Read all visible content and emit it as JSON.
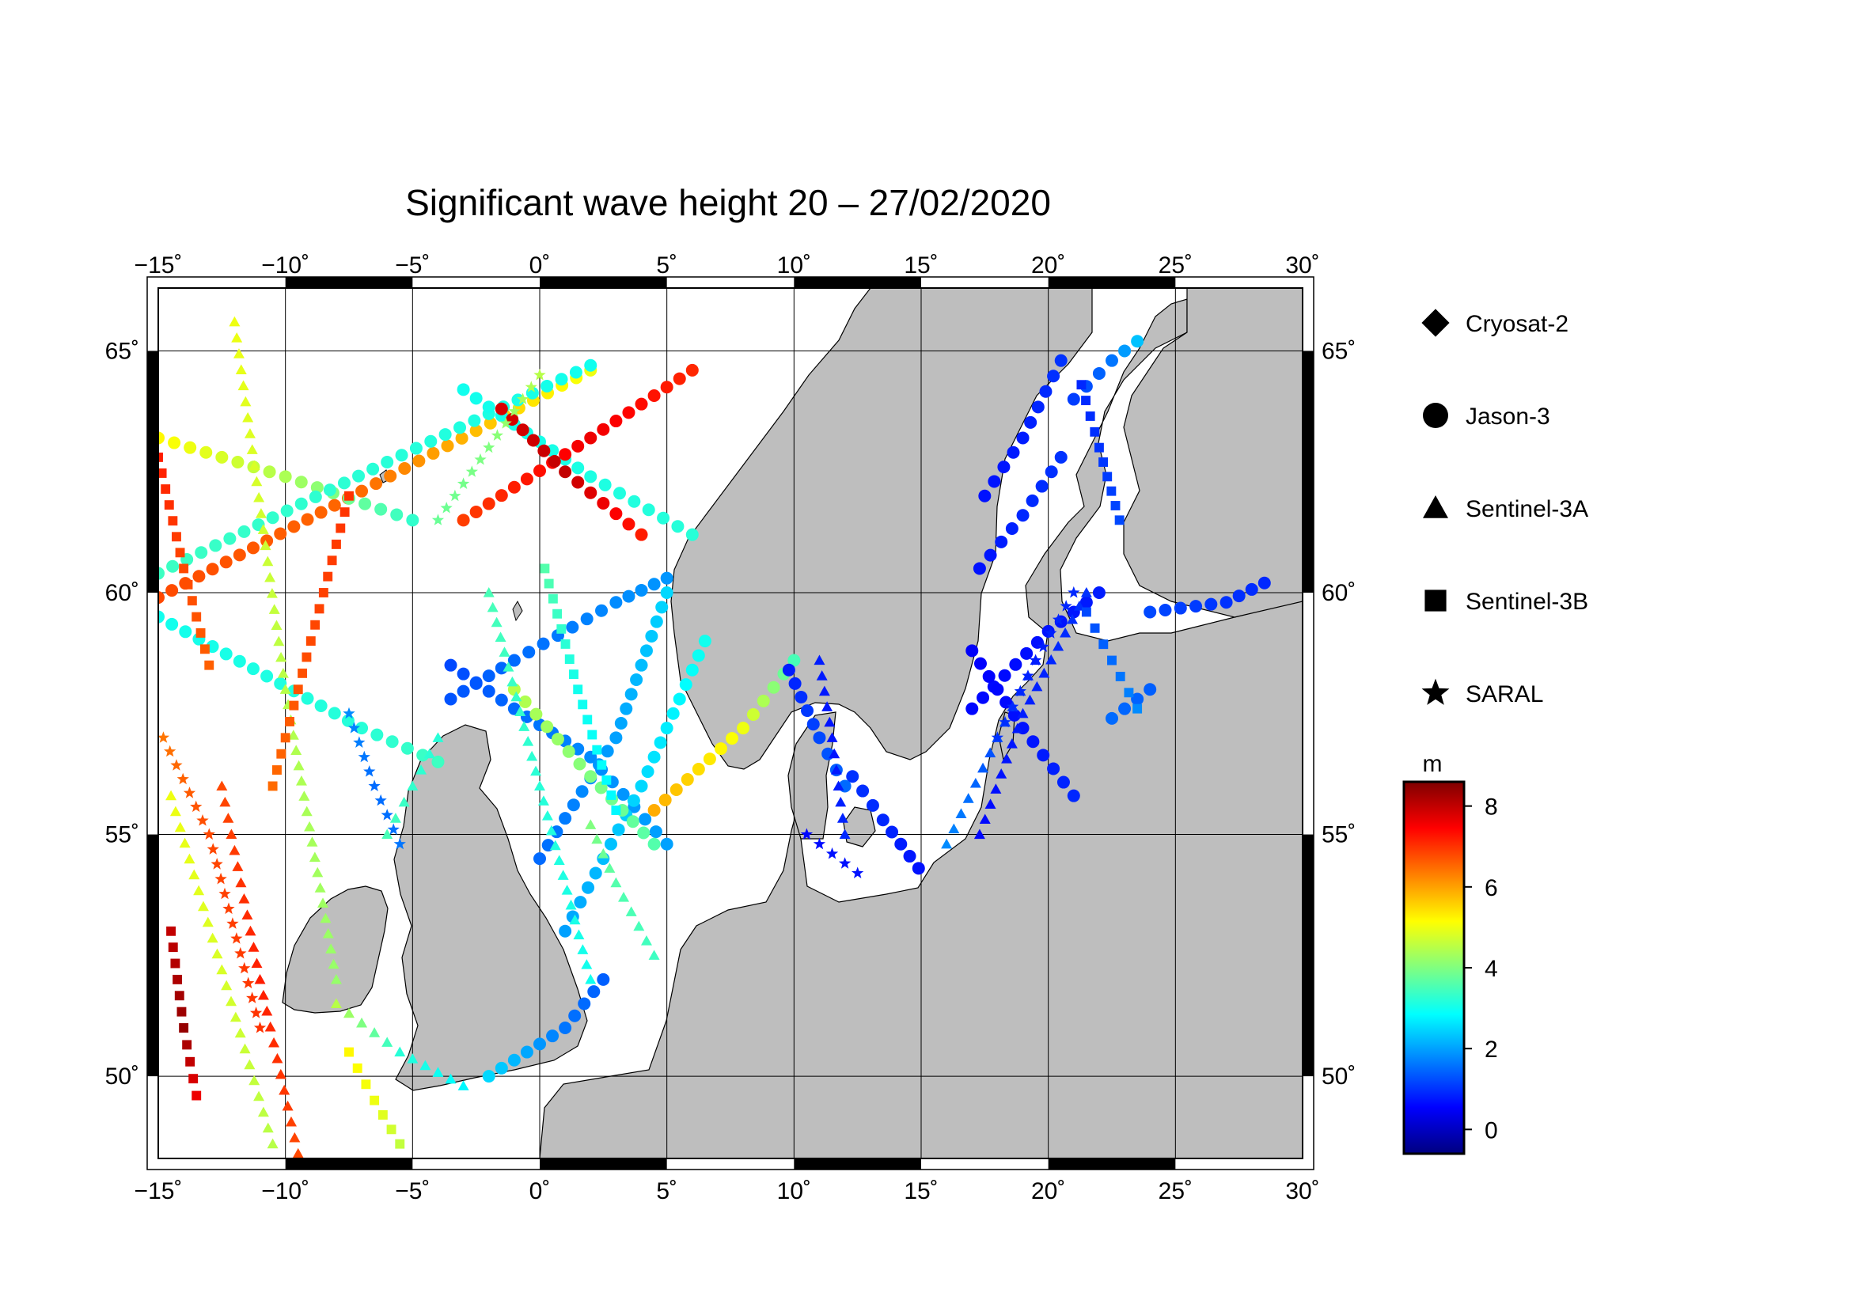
{
  "title": "Significant wave height 20 – 27/02/2020",
  "map": {
    "lon_range": [
      -15,
      30
    ],
    "lat_range": [
      48.3,
      66.3
    ],
    "lon_ticks": [
      -15,
      -10,
      -5,
      0,
      5,
      10,
      15,
      20,
      25,
      30
    ],
    "lat_ticks": [
      50,
      55,
      60,
      65
    ],
    "lon_tick_labels": [
      "−15˚",
      "−10˚",
      "−5˚",
      "0˚",
      "5˚",
      "10˚",
      "15˚",
      "20˚",
      "25˚",
      "30˚"
    ],
    "lat_tick_labels": [
      "50˚",
      "55˚",
      "60˚",
      "65˚"
    ],
    "land_color": "#bebebe",
    "sea_color": "#ffffff",
    "grid_color": "#000000"
  },
  "legend": {
    "items": [
      {
        "label": "Cryosat-2",
        "symbol": "diamond"
      },
      {
        "label": "Jason-3",
        "symbol": "circle"
      },
      {
        "label": "Sentinel-3A",
        "symbol": "triangle"
      },
      {
        "label": "Sentinel-3B",
        "symbol": "square"
      },
      {
        "label": "SARAL",
        "symbol": "star"
      }
    ]
  },
  "colorbar": {
    "unit": "m",
    "min": -0.6,
    "max": 8.6,
    "ticks": [
      0,
      2,
      4,
      6,
      8
    ],
    "tick_labels": [
      "0",
      "2",
      "4",
      "6",
      "8"
    ],
    "colormap": [
      "#00007f",
      "#0000ff",
      "#0080ff",
      "#00ffff",
      "#80ff80",
      "#ffff00",
      "#ff8000",
      "#ff0000",
      "#7f0000"
    ]
  },
  "chart_data": {
    "type": "scatter",
    "title": "Significant wave height 20 – 27/02/2020",
    "xlabel": "",
    "ylabel": "",
    "xlim": [
      -15,
      30
    ],
    "ylim": [
      48.3,
      66.3
    ],
    "value_unit": "m",
    "tracks": [
      {
        "satellite": "Jason-3",
        "points": [
          [
            -15,
            59.9,
            6.8
          ],
          [
            -7,
            62.1,
            6.5
          ],
          [
            2,
            64.6,
            5.0
          ]
        ]
      },
      {
        "satellite": "Jason-3",
        "points": [
          [
            -15,
            63.2,
            5.2
          ],
          [
            -10,
            62.4,
            4.4
          ],
          [
            -5,
            61.5,
            3.3
          ]
        ]
      },
      {
        "satellite": "Jason-3",
        "points": [
          [
            -15,
            60.4,
            3.4
          ],
          [
            -6,
            62.7,
            3.2
          ],
          [
            2,
            64.7,
            3.0
          ]
        ]
      },
      {
        "satellite": "Jason-3",
        "points": [
          [
            -15,
            59.5,
            3.0
          ],
          [
            -7,
            57.2,
            3.2
          ],
          [
            -4,
            56.5,
            3.4
          ]
        ]
      },
      {
        "satellite": "Jason-3",
        "points": [
          [
            -3,
            64.2,
            3.0
          ],
          [
            2,
            62.4,
            3.1
          ],
          [
            6,
            61.2,
            3.2
          ]
        ]
      },
      {
        "satellite": "Jason-3",
        "points": [
          [
            -3,
            61.5,
            6.9
          ],
          [
            2,
            63.2,
            7.6
          ],
          [
            6,
            64.6,
            7.1
          ]
        ]
      },
      {
        "satellite": "Jason-3",
        "points": [
          [
            -1.5,
            63.8,
            7.8
          ],
          [
            1,
            62.5,
            8.0
          ],
          [
            4,
            61.2,
            7.2
          ]
        ]
      },
      {
        "satellite": "Jason-3",
        "points": [
          [
            -3.5,
            57.8,
            1.3
          ],
          [
            -1,
            58.6,
            1.5
          ],
          [
            3,
            59.8,
            1.8
          ],
          [
            5,
            60.3,
            1.9
          ]
        ]
      },
      {
        "satellite": "Jason-3",
        "points": [
          [
            -3.5,
            58.5,
            1.2
          ],
          [
            -1,
            57.6,
            1.5
          ],
          [
            2,
            56.6,
            1.8
          ],
          [
            5,
            54.8,
            2.0
          ]
        ]
      },
      {
        "satellite": "Jason-3",
        "points": [
          [
            0,
            54.5,
            1.5
          ],
          [
            3,
            57.0,
            2.0
          ],
          [
            5,
            60.0,
            2.5
          ]
        ]
      },
      {
        "satellite": "Jason-3",
        "points": [
          [
            1,
            53.0,
            2.0
          ],
          [
            4,
            56.0,
            2.5
          ],
          [
            6.5,
            59.0,
            3.0
          ]
        ]
      },
      {
        "satellite": "Jason-3",
        "points": [
          [
            -1,
            58.0,
            4.5
          ],
          [
            2,
            56.2,
            4.0
          ],
          [
            4.5,
            54.8,
            3.6
          ]
        ]
      },
      {
        "satellite": "Jason-3",
        "points": [
          [
            4.5,
            55.5,
            5.9
          ],
          [
            8,
            57.2,
            5.0
          ],
          [
            10,
            58.6,
            3.5
          ]
        ]
      },
      {
        "satellite": "Jason-3",
        "points": [
          [
            17.5,
            62.0,
            0.7
          ],
          [
            19,
            63.2,
            0.8
          ],
          [
            20.5,
            64.8,
            1.0
          ]
        ]
      },
      {
        "satellite": "Jason-3",
        "points": [
          [
            17.3,
            60.5,
            0.7
          ],
          [
            19,
            61.6,
            0.9
          ],
          [
            20.5,
            62.8,
            1.0
          ]
        ]
      },
      {
        "satellite": "Jason-3",
        "points": [
          [
            17,
            57.6,
            0.6
          ],
          [
            20,
            59.2,
            0.7
          ],
          [
            22,
            60.0,
            0.8
          ]
        ]
      },
      {
        "satellite": "Jason-3",
        "points": [
          [
            17,
            58.8,
            0.5
          ],
          [
            19,
            57.2,
            0.7
          ],
          [
            21,
            55.8,
            0.9
          ]
        ]
      },
      {
        "satellite": "Jason-3",
        "points": [
          [
            24,
            59.6,
            1.2
          ],
          [
            27,
            59.8,
            1.0
          ],
          [
            28.5,
            60.2,
            0.9
          ]
        ]
      },
      {
        "satellite": "Jason-3",
        "points": [
          [
            22.5,
            57.4,
            1.5
          ],
          [
            24,
            58.0,
            1.4
          ]
        ]
      },
      {
        "satellite": "Jason-3",
        "points": [
          [
            12.3,
            56.2,
            1.0
          ],
          [
            13.5,
            55.3,
            0.9
          ],
          [
            14.9,
            54.3,
            0.7
          ]
        ]
      },
      {
        "satellite": "Jason-3",
        "points": [
          [
            21,
            64.0,
            1.1
          ],
          [
            22.5,
            64.8,
            1.6
          ],
          [
            23.5,
            65.2,
            2.3
          ]
        ]
      },
      {
        "satellite": "Jason-3",
        "points": [
          [
            9.8,
            58.4,
            0.8
          ],
          [
            11,
            57.0,
            1.2
          ],
          [
            12,
            56.0,
            1.5
          ]
        ]
      },
      {
        "satellite": "Jason-3",
        "points": [
          [
            -2,
            50.0,
            2.5
          ],
          [
            1,
            51.0,
            1.6
          ],
          [
            2.5,
            52.0,
            1.4
          ]
        ]
      },
      {
        "satellite": "Sentinel-3A",
        "points": [
          [
            -14.5,
            55.8,
            5.0
          ],
          [
            -12.5,
            52.2,
            4.8
          ],
          [
            -10.5,
            48.6,
            4.5
          ]
        ]
      },
      {
        "satellite": "Sentinel-3A",
        "points": [
          [
            -12,
            65.6,
            5.0
          ],
          [
            -10,
            58.0,
            4.5
          ],
          [
            -8,
            52.0,
            4.2
          ]
        ]
      },
      {
        "satellite": "Sentinel-3A",
        "points": [
          [
            -12.5,
            56.0,
            6.8
          ],
          [
            -11,
            52.0,
            7.2
          ],
          [
            -9.5,
            48.4,
            6.8
          ]
        ]
      },
      {
        "satellite": "Sentinel-3A",
        "points": [
          [
            -6,
            55.0,
            3.5
          ],
          [
            -5,
            56.0,
            3.3
          ],
          [
            -4,
            57.0,
            3.2
          ]
        ]
      },
      {
        "satellite": "Sentinel-3A",
        "points": [
          [
            -2,
            60.0,
            3.5
          ],
          [
            0,
            56.0,
            3.2
          ],
          [
            2,
            52.0,
            3.0
          ]
        ]
      },
      {
        "satellite": "Sentinel-3A",
        "points": [
          [
            2,
            55.2,
            4.0
          ],
          [
            3,
            54.0,
            3.6
          ],
          [
            4.5,
            52.5,
            3.4
          ]
        ]
      },
      {
        "satellite": "Sentinel-3A",
        "points": [
          [
            16,
            54.8,
            1.8
          ],
          [
            18,
            57.0,
            1.2
          ],
          [
            19.5,
            58.6,
            0.8
          ]
        ]
      },
      {
        "satellite": "Sentinel-3A",
        "points": [
          [
            17.3,
            55.0,
            0.6
          ],
          [
            19,
            57.5,
            0.8
          ],
          [
            21.5,
            60.0,
            1.0
          ]
        ]
      },
      {
        "satellite": "Sentinel-3A",
        "points": [
          [
            11,
            58.6,
            0.8
          ],
          [
            11.5,
            57.0,
            0.7
          ],
          [
            12,
            55.0,
            0.9
          ]
        ]
      },
      {
        "satellite": "Sentinel-3A",
        "points": [
          [
            -8,
            51.5,
            4.5
          ],
          [
            -5.5,
            50.5,
            3.2
          ],
          [
            -3,
            49.8,
            2.8
          ]
        ]
      },
      {
        "satellite": "Sentinel-3B",
        "points": [
          [
            -15,
            62.8,
            7.2
          ],
          [
            -14,
            60.5,
            6.8
          ],
          [
            -13,
            58.5,
            6.6
          ]
        ]
      },
      {
        "satellite": "Sentinel-3B",
        "points": [
          [
            -10.5,
            56.0,
            6.5
          ],
          [
            -9,
            59.0,
            6.8
          ],
          [
            -7.5,
            62.0,
            7.0
          ]
        ]
      },
      {
        "satellite": "Sentinel-3B",
        "points": [
          [
            -14.5,
            53.0,
            8.0
          ],
          [
            -14,
            51.0,
            8.4
          ],
          [
            -13.5,
            49.6,
            7.6
          ]
        ]
      },
      {
        "satellite": "Sentinel-3B",
        "points": [
          [
            -7.5,
            50.5,
            5.2
          ],
          [
            -6.5,
            49.5,
            5.0
          ],
          [
            -5.5,
            48.6,
            4.6
          ]
        ]
      },
      {
        "satellite": "Sentinel-3B",
        "points": [
          [
            0.2,
            60.5,
            3.6
          ],
          [
            1.5,
            58.0,
            3.0
          ],
          [
            3,
            55.5,
            2.8
          ]
        ]
      },
      {
        "satellite": "Sentinel-3B",
        "points": [
          [
            21.5,
            59.6,
            1.2
          ],
          [
            22.5,
            58.6,
            1.5
          ],
          [
            23.5,
            57.6,
            1.8
          ]
        ]
      },
      {
        "satellite": "Sentinel-3B",
        "points": [
          [
            21.3,
            64.3,
            0.9
          ],
          [
            22,
            63.0,
            1.0
          ],
          [
            22.8,
            61.5,
            1.2
          ]
        ]
      },
      {
        "satellite": "SARAL",
        "points": [
          [
            -14.8,
            57.0,
            6.4
          ],
          [
            -13,
            55.0,
            6.8
          ],
          [
            -11,
            51.0,
            7.0
          ]
        ]
      },
      {
        "satellite": "SARAL",
        "points": [
          [
            -7.5,
            57.5,
            1.8
          ],
          [
            -6.5,
            56.0,
            1.5
          ],
          [
            -5.5,
            54.8,
            1.6
          ]
        ]
      },
      {
        "satellite": "SARAL",
        "points": [
          [
            -4,
            61.5,
            3.8
          ],
          [
            -2,
            63.0,
            4.0
          ],
          [
            0,
            64.5,
            4.5
          ]
        ]
      },
      {
        "satellite": "SARAL",
        "points": [
          [
            18,
            57.0,
            1.0
          ],
          [
            19.5,
            58.6,
            0.8
          ],
          [
            21,
            60.0,
            0.9
          ]
        ]
      },
      {
        "satellite": "SARAL",
        "points": [
          [
            10.5,
            55.0,
            0.6
          ],
          [
            11.5,
            54.6,
            0.7
          ],
          [
            12.5,
            54.2,
            0.7
          ]
        ]
      }
    ]
  }
}
